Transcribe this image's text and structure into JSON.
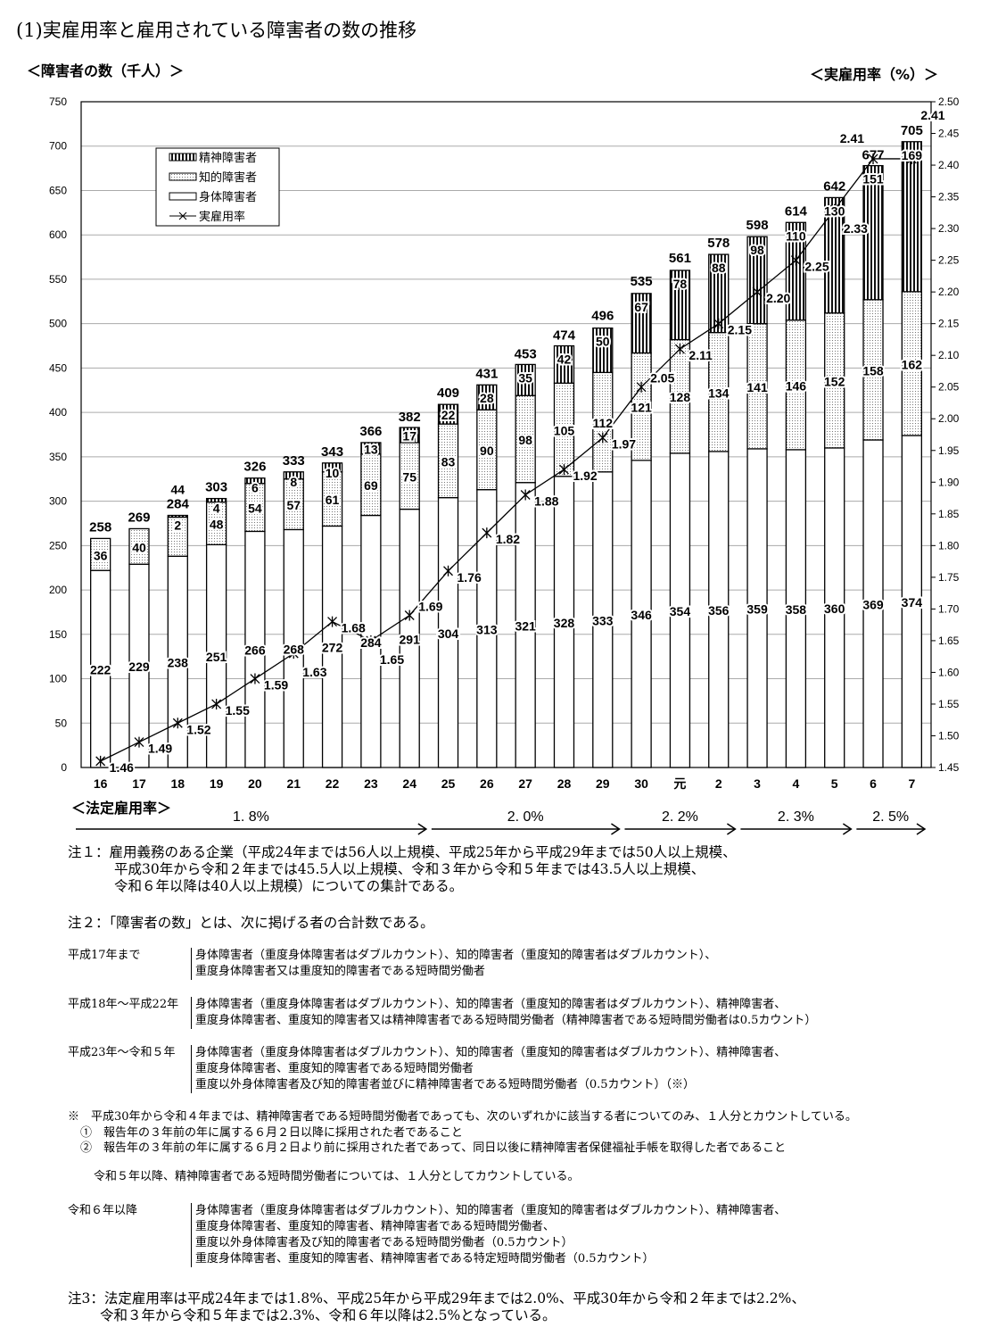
{
  "title": "(1)実雇用率と雇用されている障害者の数の推移",
  "chart_data": {
    "type": "bar+line",
    "title": "(1)実雇用率と雇用されている障害者の数の推移",
    "ylabel": "＜障害者の数（千人）＞",
    "y2label": "＜実雇用率（%）＞",
    "ylim": [
      0,
      750
    ],
    "y2lim": [
      1.45,
      2.5
    ],
    "yticks": [
      0,
      50,
      100,
      150,
      200,
      250,
      300,
      350,
      400,
      450,
      500,
      550,
      600,
      650,
      700,
      750
    ],
    "y2ticks": [
      "1.45",
      "1.50",
      "1.55",
      "1.60",
      "1.65",
      "1.70",
      "1.75",
      "1.80",
      "1.85",
      "1.90",
      "1.95",
      "2.00",
      "2.05",
      "2.10",
      "2.15",
      "2.20",
      "2.25",
      "2.30",
      "2.35",
      "2.40",
      "2.45",
      "2.50"
    ],
    "grid": true,
    "legend_placement": "top-left",
    "categories": [
      "16",
      "17",
      "18",
      "19",
      "20",
      "21",
      "22",
      "23",
      "24",
      "25",
      "26",
      "27",
      "28",
      "29",
      "30",
      "元",
      "2",
      "3",
      "4",
      "5",
      "6",
      "7"
    ],
    "series": [
      {
        "name": "身体障害者",
        "type": "stacked-bar",
        "pattern": "white",
        "values": [
          222,
          229,
          238,
          251,
          266,
          268,
          272,
          284,
          291,
          304,
          313,
          321,
          328,
          333,
          346,
          354,
          356,
          359,
          358,
          360,
          369,
          374
        ]
      },
      {
        "name": "知的障害者",
        "type": "stacked-bar",
        "pattern": "dotted",
        "values": [
          36,
          40,
          44,
          48,
          54,
          57,
          61,
          69,
          75,
          83,
          90,
          98,
          105,
          112,
          121,
          128,
          134,
          141,
          146,
          152,
          158,
          162
        ]
      },
      {
        "name": "精神障害者",
        "type": "stacked-bar",
        "pattern": "vertical-stripes",
        "values": [
          null,
          null,
          2,
          4,
          6,
          8,
          10,
          13,
          17,
          22,
          28,
          35,
          42,
          50,
          67,
          78,
          88,
          98,
          110,
          130,
          151,
          169
        ]
      },
      {
        "name": "実雇用率",
        "type": "line",
        "axis": "right",
        "marker": "asterisk",
        "values": [
          1.46,
          1.49,
          1.52,
          1.55,
          1.59,
          1.63,
          1.68,
          1.65,
          1.69,
          1.76,
          1.82,
          1.88,
          1.92,
          1.97,
          2.05,
          2.11,
          2.15,
          2.2,
          2.25,
          2.33,
          2.41,
          2.41
        ]
      }
    ],
    "totals": [
      258,
      269,
      284,
      303,
      326,
      333,
      343,
      366,
      382,
      409,
      431,
      453,
      474,
      496,
      535,
      561,
      578,
      598,
      614,
      642,
      677,
      705
    ],
    "legal_rate_label": "＜法定雇用率＞",
    "legal_rates": [
      {
        "label": "1. 8%",
        "from": "16",
        "to": "24"
      },
      {
        "label": "2. 0%",
        "from": "25",
        "to": "29"
      },
      {
        "label": "2. 2%",
        "from": "30",
        "to": "2"
      },
      {
        "label": "2. 3%",
        "from": "3",
        "to": "5"
      },
      {
        "label": "2. 5%",
        "from": "6",
        "to": "7"
      }
    ]
  },
  "notes": {
    "n1": [
      "注１：雇用義務のある企業（平成24年までは56人以上規模、平成25年から平成29年までは50人以上規模、",
      "平成30年から令和２年までは45.5人以上規模、令和３年から令和５年までは43.5人以上規模、",
      "令和６年以降は40人以上規模）についての集計である。"
    ],
    "n2": "注２：「障害者の数」とは、次に掲げる者の合計数である。",
    "periods": [
      {
        "label": "平成17年まで",
        "lines": [
          "身体障害者（重度身体障害者はダブルカウント）、知的障害者（重度知的障害者はダブルカウント）、",
          "重度身体障害者又は重度知的障害者である短時間労働者"
        ]
      },
      {
        "label": "平成18年～平成22年",
        "lines": [
          "身体障害者（重度身体障害者はダブルカウント）、知的障害者（重度知的障害者はダブルカウント）、精神障害者、",
          "重度身体障害者、重度知的障害者又は精神障害者である短時間労働者（精神障害者である短時間労働者は0.5カウント）"
        ]
      },
      {
        "label": "平成23年～令和５年",
        "lines": [
          "身体障害者（重度身体障害者はダブルカウント）、知的障害者（重度知的障害者はダブルカウント）、精神障害者、",
          "重度身体障害者、重度知的障害者である短時間労働者",
          "重度以外身体障害者及び知的障害者並びに精神障害者である短時間労働者（0.5カウント）（※）"
        ]
      }
    ],
    "star": [
      "※　平成30年から令和４年までは、精神障害者である短時間労働者であっても、次のいずれかに該当する者についてのみ、１人分とカウントしている。",
      "①　報告年の３年前の年に属する６月２日以降に採用された者であること",
      "②　報告年の３年前の年に属する６月２日より前に採用された者であって、同日以後に精神障害者保健福祉手帳を取得した者であること"
    ],
    "r5": "令和５年以降、精神障害者である短時間労働者については、１人分としてカウントしている。",
    "r6": {
      "label": "令和６年以降",
      "lines": [
        "身体障害者（重度身体障害者はダブルカウント）、知的障害者（重度知的障害者はダブルカウント）、精神障害者、",
        "重度身体障害者、重度知的障害者、精神障害者である短時間労働者、",
        "重度以外身体障害者及び知的障害者である短時間労働者（0.5カウント）",
        "重度身体障害者、重度知的障害者、精神障害者である特定短時間労働者（0.5カウント）"
      ]
    },
    "n3": [
      "注3：法定雇用率は平成24年までは1.8%、平成25年から平成29年までは2.0%、平成30年から令和２年までは2.2%、",
      "令和３年から令和５年までは2.3%、令和６年以降は2.5%となっている。"
    ]
  }
}
